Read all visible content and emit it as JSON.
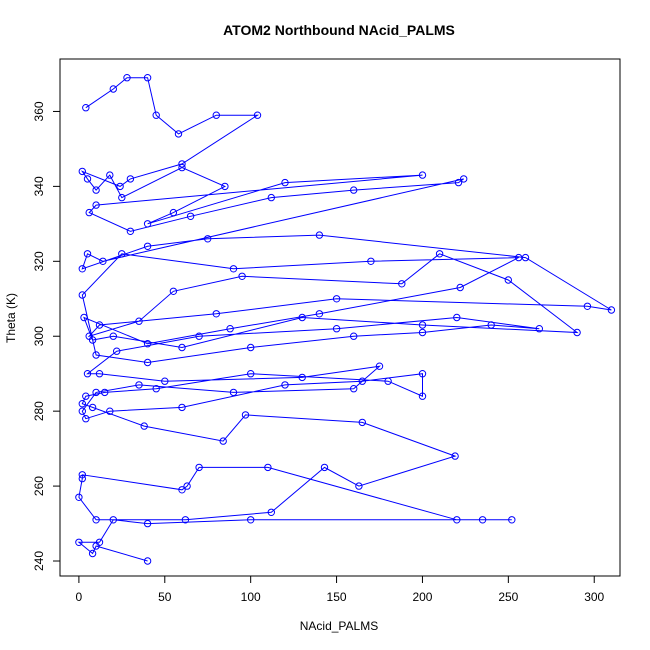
{
  "chart_data": {
    "type": "scatter",
    "title": "ATOM2 Northbound NAcid_PALMS",
    "xlabel": "NAcid_PALMS",
    "ylabel": "Theta (K)",
    "xlim": [
      -11,
      315
    ],
    "ylim": [
      236,
      374
    ],
    "x_ticks": [
      0,
      50,
      100,
      150,
      200,
      250,
      300
    ],
    "y_ticks": [
      240,
      260,
      280,
      300,
      320,
      340,
      360
    ],
    "grid": false,
    "legend": "none",
    "point_style": "open-circle",
    "connected": true,
    "color": "#0000ff",
    "series": [
      {
        "values_x": [
          4,
          20,
          28,
          40,
          45,
          58,
          80,
          104,
          60,
          30,
          24,
          2,
          5,
          10,
          18,
          25,
          60,
          85,
          55,
          40,
          120,
          200,
          10,
          6,
          30,
          65,
          112,
          160,
          221,
          224,
          14,
          5,
          2,
          40,
          75,
          140,
          260,
          310,
          296,
          150,
          80,
          12,
          6,
          35,
          55,
          95,
          188,
          210,
          250,
          290,
          200,
          130,
          60,
          20,
          8,
          3,
          40,
          88,
          140,
          222,
          256,
          170,
          90,
          25,
          2,
          10,
          40,
          100,
          160,
          200,
          240,
          268,
          220,
          150,
          70,
          22,
          5,
          12,
          50,
          130,
          175,
          160,
          90,
          35,
          10,
          2,
          4,
          18,
          60,
          120,
          165,
          200,
          200,
          180,
          100,
          45,
          15,
          4,
          2,
          8,
          38,
          84,
          97,
          165,
          219,
          163,
          143,
          112,
          62,
          10,
          0,
          2,
          2,
          60,
          63,
          70,
          110,
          220,
          235,
          252,
          100,
          40,
          20,
          12,
          0,
          8,
          10,
          40
        ],
        "values_y": [
          361,
          366,
          369,
          369,
          359,
          354,
          359,
          359,
          346,
          342,
          340,
          344,
          342,
          339,
          343,
          337,
          345,
          340,
          333,
          330,
          341,
          343,
          335,
          333,
          328,
          332,
          337,
          339,
          341,
          342,
          320,
          322,
          318,
          324,
          326,
          327,
          321,
          307,
          308,
          310,
          306,
          303,
          300,
          304,
          312,
          316,
          314,
          322,
          315,
          301,
          303,
          305,
          297,
          300,
          299,
          305,
          298,
          302,
          306,
          313,
          321,
          320,
          318,
          322,
          311,
          295,
          293,
          297,
          300,
          301,
          303,
          302,
          305,
          302,
          300,
          296,
          290,
          290,
          288,
          289,
          292,
          286,
          285,
          287,
          285,
          280,
          278,
          280,
          281,
          287,
          288,
          290,
          284,
          288,
          290,
          286,
          285,
          284,
          282,
          281,
          276,
          272,
          279,
          277,
          268,
          260,
          265,
          253,
          251,
          251,
          257,
          262,
          263,
          259,
          260,
          265,
          265,
          251,
          251,
          251,
          251,
          250,
          251,
          245,
          245,
          242,
          244,
          240
        ]
      }
    ]
  }
}
